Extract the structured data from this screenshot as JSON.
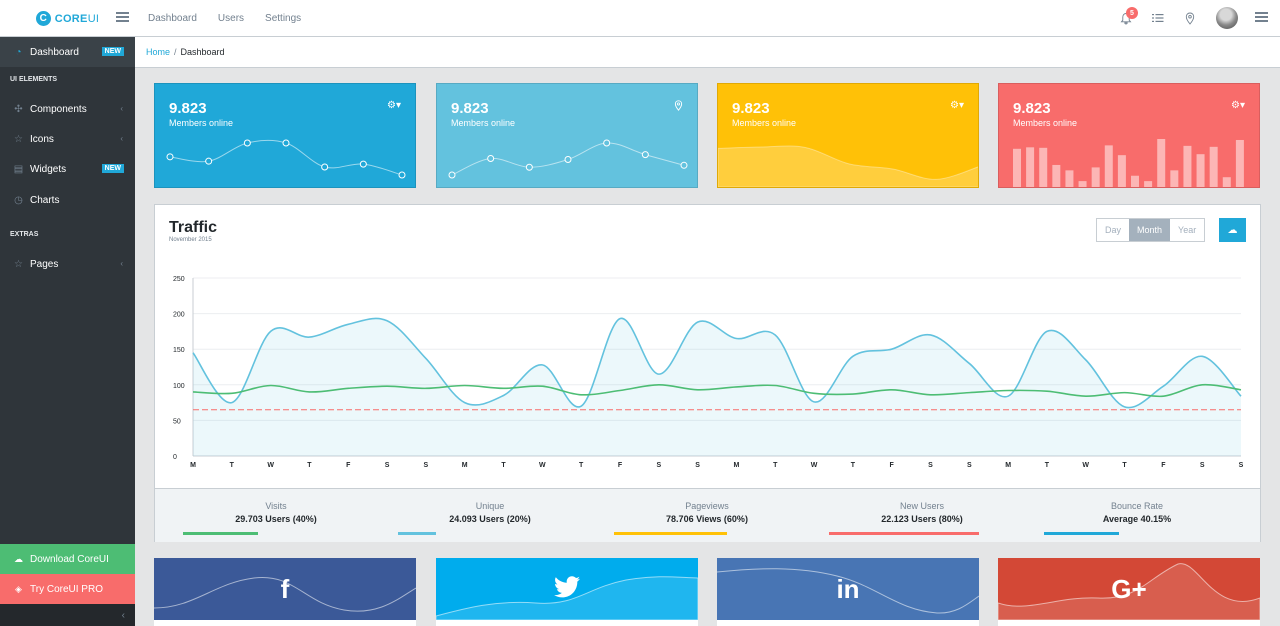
{
  "brand": {
    "name_bold": "CORE",
    "name_rest": "UI",
    "mark": "C"
  },
  "header": {
    "nav": [
      "Dashboard",
      "Users",
      "Settings"
    ],
    "notifications_count": "5",
    "icons": [
      "bell-icon",
      "list-icon",
      "location-pin-icon",
      "avatar",
      "menu-icon"
    ]
  },
  "sidebar": {
    "dashboard": {
      "label": "Dashboard",
      "badge": "NEW",
      "icon": "speedometer-icon"
    },
    "section_ui": "UI ELEMENTS",
    "components": {
      "label": "Components",
      "icon": "puzzle-icon"
    },
    "icons": {
      "label": "Icons",
      "icon": "star-icon"
    },
    "widgets": {
      "label": "Widgets",
      "badge": "NEW",
      "icon": "calculator-icon"
    },
    "charts": {
      "label": "Charts",
      "icon": "pie-chart-icon"
    },
    "section_extras": "EXTRAS",
    "pages": {
      "label": "Pages",
      "icon": "star-icon"
    },
    "download": {
      "label": "Download CoreUI",
      "icon": "cloud-download-icon",
      "color": "#4dbd74"
    },
    "pro": {
      "label": "Try CoreUI PRO",
      "icon": "layers-icon",
      "color": "#f86c6b"
    }
  },
  "breadcrumb": {
    "home": "Home",
    "separator": "/",
    "current": "Dashboard"
  },
  "stats": [
    {
      "value": "9.823",
      "label": "Members online",
      "color": "#20a8d8",
      "icon": "settings-dropdown-icon"
    },
    {
      "value": "9.823",
      "label": "Members online",
      "color": "#63c2de",
      "icon": "location-pin-icon"
    },
    {
      "value": "9.823",
      "label": "Members online",
      "color": "#ffc107",
      "icon": "settings-dropdown-icon"
    },
    {
      "value": "9.823",
      "label": "Members online",
      "color": "#f86c6b",
      "icon": "settings-dropdown-icon"
    }
  ],
  "traffic": {
    "title": "Traffic",
    "subtitle": "November 2015",
    "ranges": [
      "Day",
      "Month",
      "Year"
    ],
    "active_range": "Month",
    "download_icon": "cloud-download-icon",
    "footer": [
      {
        "label": "Visits",
        "value": "29.703 Users (40%)",
        "color": "#4dbd74",
        "percent": 40
      },
      {
        "label": "Unique",
        "value": "24.093 Users (20%)",
        "color": "#63c2de",
        "percent": 20
      },
      {
        "label": "Pageviews",
        "value": "78.706 Views (60%)",
        "color": "#ffc107",
        "percent": 60
      },
      {
        "label": "New Users",
        "value": "22.123 Users (80%)",
        "color": "#f86c6b",
        "percent": 80
      },
      {
        "label": "Bounce Rate",
        "value": "Average 40.15%",
        "color": "#20a8d8",
        "percent": 40
      }
    ]
  },
  "chart_data": {
    "type": "line",
    "categories": [
      "M",
      "T",
      "W",
      "T",
      "F",
      "S",
      "S",
      "M",
      "T",
      "W",
      "T",
      "F",
      "S",
      "S",
      "M",
      "T",
      "W",
      "T",
      "F",
      "S",
      "S",
      "M",
      "T",
      "W",
      "T",
      "F",
      "S",
      "S"
    ],
    "ylim": [
      0,
      250
    ],
    "yticks": [
      0,
      50,
      100,
      150,
      200,
      250
    ],
    "grid": true,
    "series": [
      {
        "values": [
          145,
          75,
          175,
          167,
          185,
          190,
          137,
          75,
          85,
          128,
          70,
          193,
          115,
          188,
          165,
          170,
          76,
          140,
          150,
          170,
          130,
          84,
          175,
          135,
          69,
          98,
          140,
          84
        ],
        "color": "#63c2de",
        "fill": "rgba(99,194,222,0.12)"
      },
      {
        "values": [
          90,
          88,
          99,
          90,
          95,
          98,
          95,
          99,
          95,
          98,
          86,
          92,
          100,
          93,
          97,
          99,
          88,
          87,
          93,
          86,
          89,
          92,
          91,
          84,
          89,
          84,
          100,
          93
        ],
        "color": "#4dbd74"
      },
      {
        "values": [
          65,
          65,
          65,
          65,
          65,
          65,
          65,
          65,
          65,
          65,
          65,
          65,
          65,
          65,
          65,
          65,
          65,
          65,
          65,
          65,
          65,
          65,
          65,
          65,
          65,
          65,
          65,
          65
        ],
        "color": "#f86c6b",
        "dashed": true
      }
    ]
  },
  "stat_charts": [
    {
      "type": "line",
      "values": [
        65,
        59,
        84,
        84,
        51,
        55,
        40
      ]
    },
    {
      "type": "line",
      "values": [
        1,
        18,
        9,
        17,
        34,
        22,
        11
      ]
    },
    {
      "type": "area",
      "values": [
        78,
        81,
        80,
        45,
        34,
        12,
        40
      ]
    },
    {
      "type": "bar",
      "values": [
        78,
        81,
        80,
        45,
        34,
        12,
        40,
        85,
        65,
        23,
        12,
        98,
        34,
        84,
        67,
        82,
        20,
        96
      ]
    }
  ],
  "social": [
    {
      "name": "facebook",
      "logo": "f",
      "color": "#3b5998"
    },
    {
      "name": "twitter",
      "logo": "t",
      "color": "#00aced"
    },
    {
      "name": "linkedin",
      "logo": "in",
      "color": "#4875b4"
    },
    {
      "name": "google-plus",
      "logo": "G+",
      "color": "#d34836"
    }
  ]
}
